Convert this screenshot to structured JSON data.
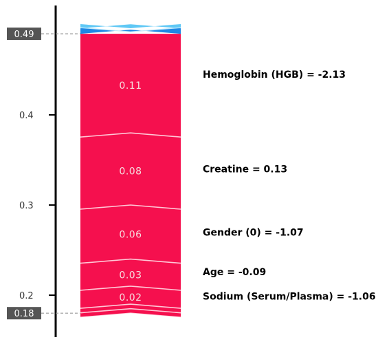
{
  "chart_data": {
    "type": "force",
    "y_ticks": [
      "0.2",
      "0.3",
      "0.4"
    ],
    "ylim": [
      0.1,
      0.5
    ],
    "base_value": 0.18,
    "output_value": 0.49,
    "base_label": "0.18",
    "output_label": "0.49",
    "positive_segments": [
      {
        "value": 0.11,
        "label": "0.11"
      },
      {
        "value": 0.08,
        "label": "0.08"
      },
      {
        "value": 0.06,
        "label": "0.06"
      },
      {
        "value": 0.03,
        "label": "0.03"
      },
      {
        "value": 0.02,
        "label": "0.02"
      },
      {
        "value": 0.005,
        "label": ""
      },
      {
        "value": 0.005,
        "label": ""
      },
      {
        "value": 0.005,
        "label": ""
      }
    ],
    "negative_segments": [
      {
        "value": 0.006
      },
      {
        "value": 0.004
      }
    ],
    "features": [
      {
        "text": "Hemoglobin (HGB) = -2.13",
        "value": 0.445
      },
      {
        "text": "Creatine = 0.13",
        "value": 0.34
      },
      {
        "text": "Gender (0) = -1.07",
        "value": 0.27
      },
      {
        "text": "Age = -0.09",
        "value": 0.226
      },
      {
        "text": "Sodium (Serum/Plasma) = -1.06",
        "value": 0.199
      }
    ],
    "colors": {
      "positive": "#f5104e",
      "negative_dark": "#1e88e5",
      "negative_light": "#5fc8f5",
      "separator": "#ffc7d6",
      "axis": "#000000",
      "box": "#555555"
    }
  }
}
